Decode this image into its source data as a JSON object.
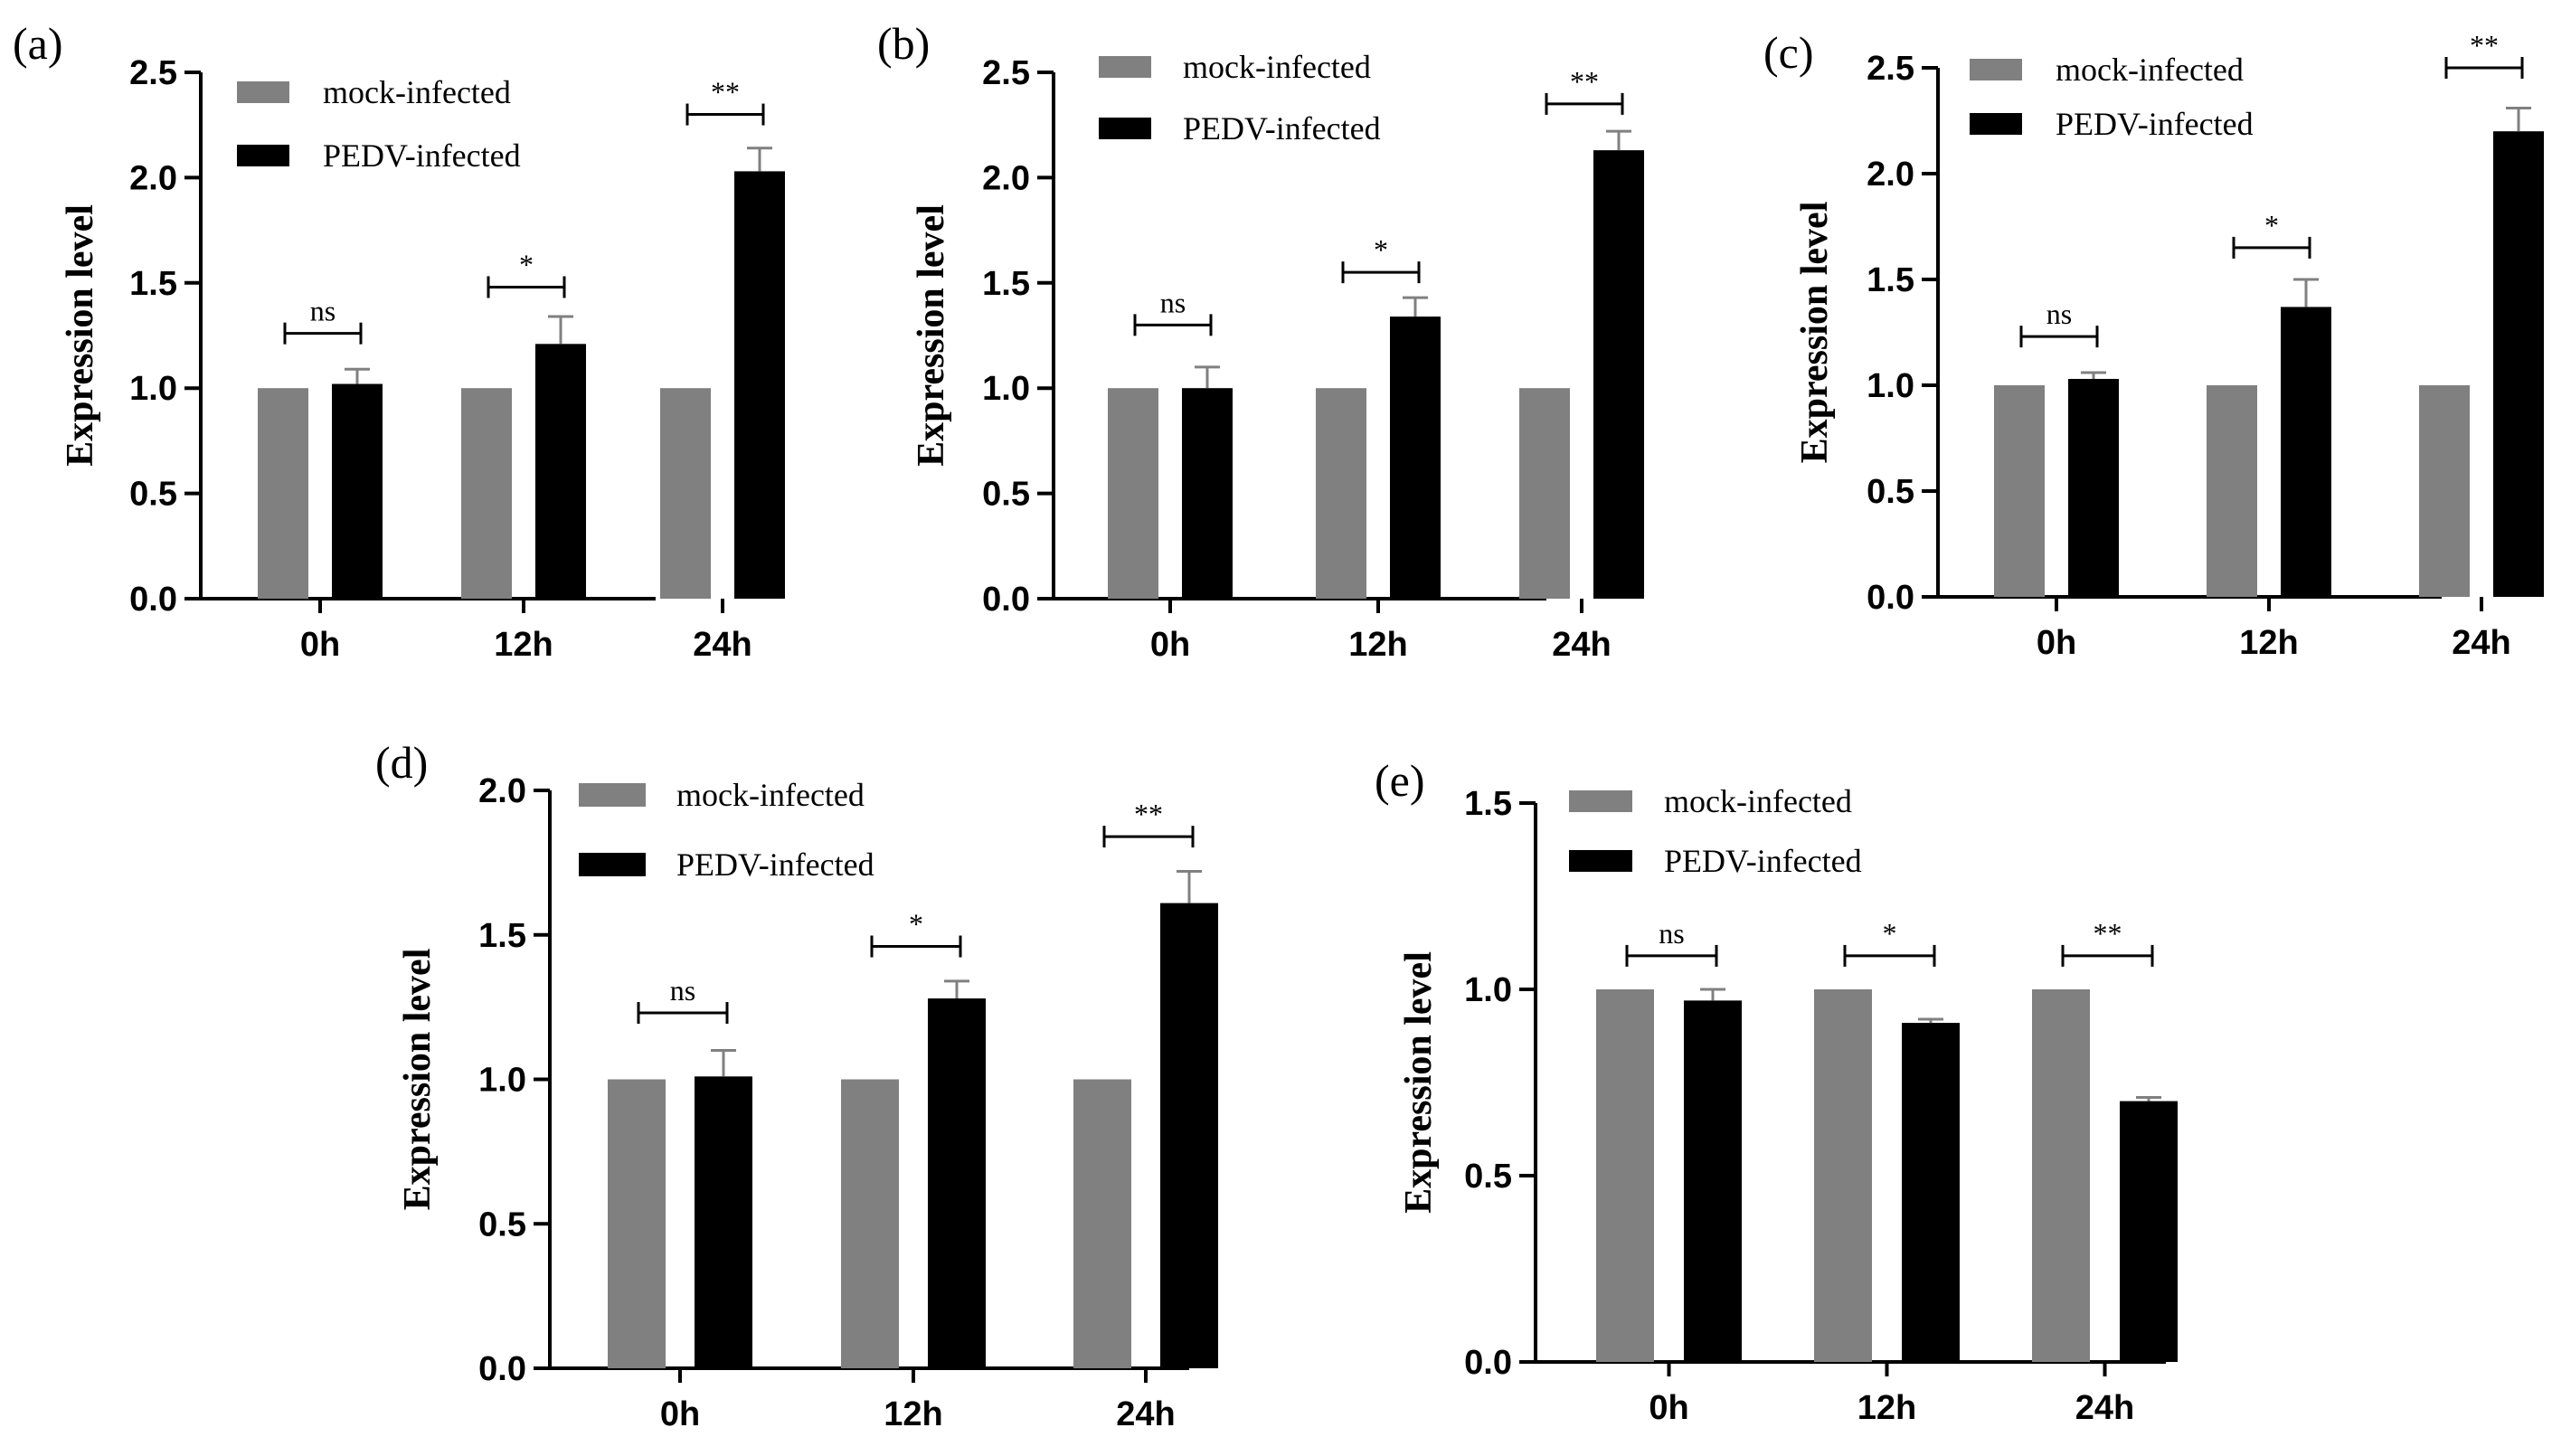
{
  "figure": {
    "panel_count": 5
  },
  "chart_data": [
    {
      "panel": "(a)",
      "type": "bar",
      "categories": [
        "0h",
        "12h",
        "24h"
      ],
      "series": [
        {
          "name": "mock-infected",
          "values": [
            1.0,
            1.0,
            1.0
          ],
          "errors": [
            0,
            0,
            0
          ]
        },
        {
          "name": "PEDV-infected",
          "values": [
            1.02,
            1.21,
            2.03
          ],
          "errors": [
            0.07,
            0.13,
            0.11
          ]
        }
      ],
      "significance": [
        "ns",
        "*",
        "**"
      ],
      "sig_y": [
        1.26,
        1.48,
        2.3
      ],
      "xlabel": "",
      "ylabel": "Expression level",
      "ylim": [
        0,
        2.5
      ],
      "yticks": [
        0.0,
        0.5,
        1.0,
        1.5,
        2.0,
        2.5
      ],
      "ytick_labels": [
        "0.0",
        "0.5",
        "1.0",
        "1.5",
        "2.0",
        "2.5"
      ]
    },
    {
      "panel": "(b)",
      "type": "bar",
      "categories": [
        "0h",
        "12h",
        "24h"
      ],
      "series": [
        {
          "name": "mock-infected",
          "values": [
            1.0,
            1.0,
            1.0
          ],
          "errors": [
            0,
            0,
            0
          ]
        },
        {
          "name": "PEDV-infected",
          "values": [
            1.0,
            1.34,
            2.13
          ],
          "errors": [
            0.1,
            0.09,
            0.09
          ]
        }
      ],
      "significance": [
        "ns",
        "*",
        "**"
      ],
      "sig_y": [
        1.3,
        1.55,
        2.35
      ],
      "xlabel": "",
      "ylabel": "Expression level",
      "ylim": [
        0,
        2.5
      ],
      "yticks": [
        0.0,
        0.5,
        1.0,
        1.5,
        2.0,
        2.5
      ],
      "ytick_labels": [
        "0.0",
        "0.5",
        "1.0",
        "1.5",
        "2.0",
        "2.5"
      ]
    },
    {
      "panel": "(c)",
      "type": "bar",
      "categories": [
        "0h",
        "12h",
        "24h"
      ],
      "series": [
        {
          "name": "mock-infected",
          "values": [
            1.0,
            1.0,
            1.0
          ],
          "errors": [
            0,
            0,
            0
          ]
        },
        {
          "name": "PEDV-infected",
          "values": [
            1.03,
            1.37,
            2.2
          ],
          "errors": [
            0.03,
            0.13,
            0.11
          ]
        }
      ],
      "significance": [
        "ns",
        "*",
        "**"
      ],
      "sig_y": [
        1.23,
        1.65,
        2.5
      ],
      "xlabel": "",
      "ylabel": "Expression level",
      "ylim": [
        0,
        2.5
      ],
      "yticks": [
        0.0,
        0.5,
        1.0,
        1.5,
        2.0,
        2.5
      ],
      "ytick_labels": [
        "0.0",
        "0.5",
        "1.0",
        "1.5",
        "2.0",
        "2.5"
      ]
    },
    {
      "panel": "(d)",
      "type": "bar",
      "categories": [
        "0h",
        "12h",
        "24h"
      ],
      "series": [
        {
          "name": "mock-infected",
          "values": [
            1.0,
            1.0,
            1.0
          ],
          "errors": [
            0,
            0,
            0
          ]
        },
        {
          "name": "PEDV-infected",
          "values": [
            1.01,
            1.28,
            1.61
          ],
          "errors": [
            0.09,
            0.06,
            0.11
          ]
        }
      ],
      "significance": [
        "ns",
        "*",
        "**"
      ],
      "sig_y": [
        1.23,
        1.46,
        1.84
      ],
      "xlabel": "",
      "ylabel": "Expression level",
      "ylim": [
        0,
        2.0
      ],
      "yticks": [
        0.0,
        0.5,
        1.0,
        1.5,
        2.0
      ],
      "ytick_labels": [
        "0.0",
        "0.5",
        "1.0",
        "1.5",
        "2.0"
      ]
    },
    {
      "panel": "(e)",
      "type": "bar",
      "categories": [
        "0h",
        "12h",
        "24h"
      ],
      "series": [
        {
          "name": "mock-infected",
          "values": [
            1.0,
            1.0,
            1.0
          ],
          "errors": [
            0,
            0,
            0
          ]
        },
        {
          "name": "PEDV-infected",
          "values": [
            0.97,
            0.91,
            0.7
          ],
          "errors": [
            0.03,
            0.01,
            0.01
          ]
        }
      ],
      "significance": [
        "ns",
        "*",
        "**"
      ],
      "sig_y": [
        1.09,
        1.09,
        1.09
      ],
      "xlabel": "",
      "ylabel": "Expression level",
      "ylim": [
        0,
        1.5
      ],
      "yticks": [
        0.0,
        0.5,
        1.0,
        1.5
      ],
      "ytick_labels": [
        "0.0",
        "0.5",
        "1.0",
        "1.5"
      ]
    }
  ],
  "colors": {
    "mock": "#808080",
    "pedv": "#000000",
    "axis": "#000000",
    "errorbar": "#808080"
  }
}
